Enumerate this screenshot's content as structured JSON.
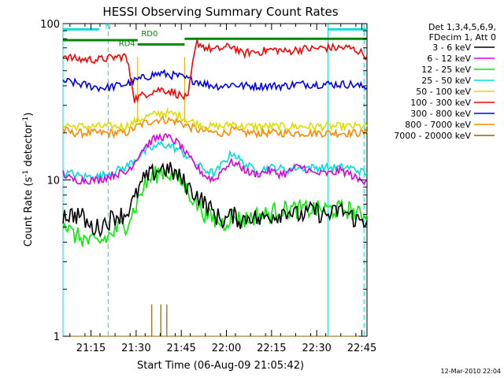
{
  "chart_data": {
    "type": "line",
    "title": "HESSI Observing Summary Count Rates",
    "xlabel": "Start Time (06-Aug-09 21:05:42)",
    "ylabel": "Count Rate (s",
    "ylabel_sup": "-1",
    "ylabel_tail": " detector",
    "ylabel_end": ")",
    "yscale": "log",
    "ylim": [
      1,
      100
    ],
    "xlim_minutes": [
      0,
      101
    ],
    "y_ticks": [
      {
        "value": 1,
        "label": "1"
      },
      {
        "value": 10,
        "label": "10"
      },
      {
        "value": 100,
        "label": "100"
      }
    ],
    "x_ticks": [
      {
        "value": 9.3,
        "label": "21:15"
      },
      {
        "value": 24.3,
        "label": "21:30"
      },
      {
        "value": 39.3,
        "label": "21:45"
      },
      {
        "value": 54.3,
        "label": "22:00"
      },
      {
        "value": 69.3,
        "label": "22:15"
      },
      {
        "value": 84.3,
        "label": "22:30"
      },
      {
        "value": 99.3,
        "label": "22:45"
      }
    ],
    "legend": {
      "header_lines": [
        "Det 1,3,4,5,6,9,",
        "FDecim 1, Att 0"
      ],
      "placement": "right"
    },
    "series": [
      {
        "name": "3 - 6 keV",
        "color": "#000000",
        "values": [
          6,
          6,
          6,
          5,
          5,
          5.5,
          6,
          6,
          7.5,
          10,
          11,
          12,
          11.5,
          10.5,
          9,
          8,
          7,
          6,
          5.5,
          6,
          5.5,
          6,
          5.5,
          6,
          6,
          6.5,
          6,
          6,
          6.5,
          6,
          6,
          6.5,
          6,
          5.5,
          5.5
        ]
      },
      {
        "name": "6 - 12 keV",
        "color": "#dd00dd",
        "values": [
          11,
          10,
          10,
          10,
          10,
          10.5,
          11,
          11,
          13,
          16,
          18,
          19,
          18.5,
          17,
          14,
          12,
          10.5,
          10,
          12,
          13,
          12,
          11,
          11,
          11.5,
          11,
          11,
          12,
          12,
          11,
          11,
          11,
          11.5,
          11,
          10,
          10
        ]
      },
      {
        "name": "12 - 25 keV",
        "color": "#00ee00",
        "values": [
          5.5,
          4.5,
          4.3,
          4,
          4,
          4.3,
          4.8,
          5.2,
          6.5,
          9,
          10.5,
          11.5,
          11,
          10,
          8.5,
          7,
          6,
          5.5,
          5.3,
          6,
          5.5,
          5.8,
          6,
          6,
          6.5,
          6.5,
          6.5,
          6.5,
          6.5,
          6.5,
          6.5,
          6.5,
          6.5,
          6,
          6
        ]
      },
      {
        "name": "25 - 50 keV",
        "color": "#00dddd",
        "values": [
          11,
          11,
          10.5,
          10.5,
          10.5,
          11,
          11.5,
          12,
          13.5,
          15,
          16,
          17,
          16.5,
          15.5,
          14,
          12.5,
          11.5,
          11,
          13,
          15,
          13,
          12,
          11.5,
          12,
          12,
          11.5,
          12,
          12,
          12,
          12,
          12,
          12,
          12,
          11.5,
          11
        ]
      },
      {
        "name": "50 - 100 keV",
        "color": "#dddd00",
        "values": [
          23,
          22,
          22,
          22,
          22,
          22,
          22,
          22,
          23.5,
          25,
          26,
          27,
          26.5,
          26,
          24,
          23,
          22,
          22,
          22,
          23,
          22,
          22,
          22,
          22,
          22,
          22,
          22,
          22,
          22,
          22,
          22,
          22,
          22,
          22,
          22
        ]
      },
      {
        "name": "100 - 300 keV",
        "color": "#ff0000",
        "values": [
          63,
          60,
          59,
          59,
          59,
          60,
          61,
          62,
          33,
          35,
          37,
          38,
          37,
          35,
          33,
          76,
          70,
          68,
          70,
          72,
          64,
          66,
          66,
          68,
          68,
          66,
          68,
          69,
          69,
          70,
          70,
          70,
          70,
          67,
          62
        ]
      },
      {
        "name": "300 - 800 keV",
        "color": "#0000ee",
        "values": [
          43,
          42,
          41,
          40,
          39,
          39,
          40,
          41,
          43,
          45,
          47,
          48,
          47,
          46,
          44,
          43,
          41,
          40,
          40,
          41,
          40,
          40,
          40,
          40,
          40,
          40,
          41,
          41,
          41,
          41,
          41,
          41,
          41,
          40,
          39
        ]
      },
      {
        "name": "800 - 7000 keV",
        "color": "#ff8800",
        "values": [
          21,
          20,
          20,
          20,
          20,
          20,
          20,
          20,
          21.5,
          23,
          24,
          24.5,
          24,
          23.5,
          22,
          21,
          20.5,
          20,
          20,
          21,
          20,
          20,
          20,
          20,
          20,
          20,
          20,
          20,
          20,
          20,
          20,
          20,
          20,
          20,
          20
        ]
      },
      {
        "name": "7000 - 20000 keV",
        "color": "#886600",
        "values": [
          1,
          1,
          1,
          1,
          1,
          1,
          1,
          1,
          1,
          1,
          1,
          1,
          1,
          1,
          1,
          1,
          1,
          1,
          1,
          1,
          1,
          1,
          1,
          1,
          1,
          1,
          1,
          1,
          1,
          1,
          1,
          1,
          1,
          1,
          1
        ]
      }
    ],
    "attenuator_bar": {
      "value": 80,
      "color": "#008800"
    },
    "spikes_7000": [
      {
        "x": 29.5,
        "y": 1.6
      },
      {
        "x": 32.5,
        "y": 1.6
      },
      {
        "x": 34.5,
        "y": 1.6
      }
    ],
    "annotations": [
      {
        "label": "N",
        "color": "#00dddd",
        "x": 14,
        "y": 92
      },
      {
        "label": "RD4",
        "color": "#008800",
        "x": 18.5,
        "y": 72
      },
      {
        "label": "RD0",
        "color": "#008800",
        "x": 26,
        "y": 83
      }
    ],
    "night_bars": [
      {
        "x0": 0,
        "x1": 12,
        "y": 92
      },
      {
        "x0": 88,
        "x1": 101,
        "y": 92
      }
    ],
    "solid_markers": [
      0,
      88
    ],
    "dashed_markers": [
      15,
      100
    ],
    "orange_marker_lines": [
      24.8,
      40.4
    ],
    "gray_lines": [],
    "timestamp": "12-Mar-2010 22:04"
  }
}
